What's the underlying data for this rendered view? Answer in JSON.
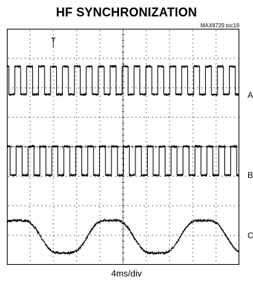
{
  "chart_data": {
    "type": "line",
    "title": "HF SYNCHRONIZATION",
    "figure_code": "MAX8729 toc19",
    "xlabel": "4ms/div",
    "grid": true,
    "divisions": {
      "x": 10,
      "y": 8
    },
    "trigger_marker": "T",
    "series": [
      {
        "name": "A",
        "waveform": "square",
        "cycles_on_screen": 19.5
      },
      {
        "name": "B",
        "waveform": "square",
        "cycles_on_screen": 19.5
      },
      {
        "name": "C",
        "waveform": "triangle-like",
        "cycles_on_screen": 2.5
      }
    ]
  }
}
